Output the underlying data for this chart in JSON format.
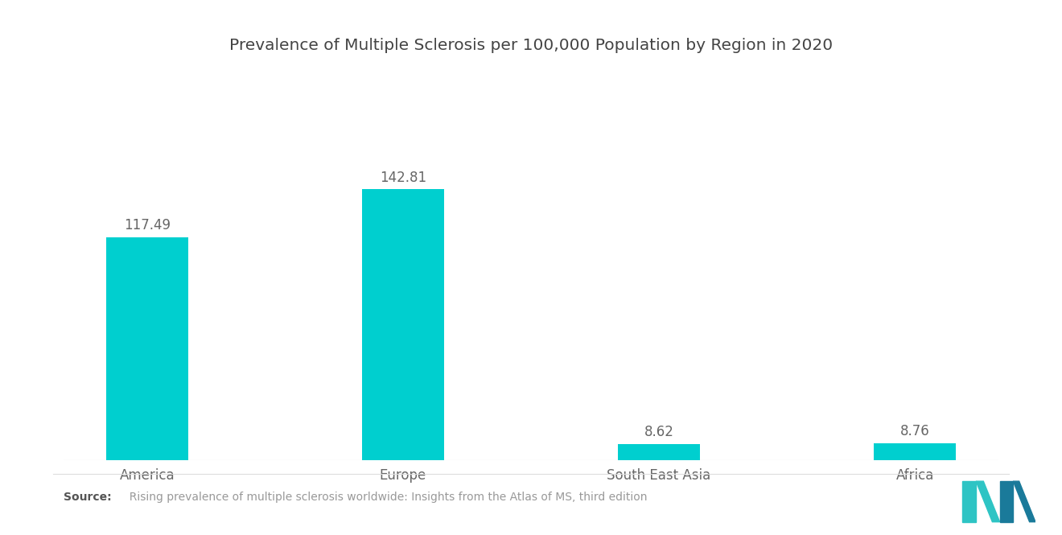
{
  "title": "Prevalence of Multiple Sclerosis per 100,000 Population by Region in 2020",
  "categories": [
    "America",
    "Europe",
    "South East Asia",
    "Africa"
  ],
  "values": [
    117.49,
    142.81,
    8.62,
    8.76
  ],
  "bar_color": "#00CFCF",
  "background_color": "#ffffff",
  "title_fontsize": 14.5,
  "label_fontsize": 12,
  "value_fontsize": 12,
  "source_bold": "Source:",
  "source_text": "  Rising prevalence of multiple sclerosis worldwide: Insights from the Atlas of MS, third edition",
  "ylim": [
    0,
    175
  ]
}
